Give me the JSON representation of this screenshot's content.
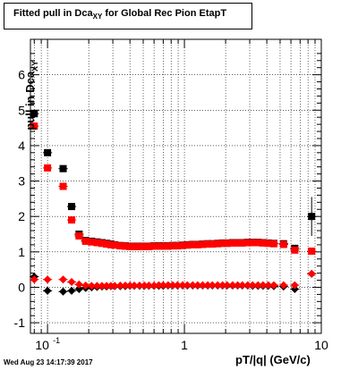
{
  "title_prefix": "Fitted pull in Dca",
  "title_sub": "XY",
  "title_suffix": " for Global Rec Pion EtapT",
  "ylabel_main": "pull in Dca",
  "ylabel_sub": "XY",
  "xlabel": "pT/|q| (GeV/c)",
  "datestamp": "Wed Aug 23 14:17:39 2017",
  "colors": {
    "black_series": "#000000",
    "red_series": "#ff0000",
    "grid": "#000000"
  },
  "chart_data": {
    "type": "scatter",
    "title": "Fitted pull in DcaXY for Global Rec Pion EtapT",
    "xlabel": "pT/|q| (GeV/c)",
    "ylabel": "pull in DcaXY",
    "xscale": "log",
    "xlim": [
      0.075,
      10
    ],
    "ylim": [
      -1.3,
      7
    ],
    "grid": true,
    "x_tick_labels": [
      {
        "value": 0.1,
        "label": "10",
        "exp": "-1"
      },
      {
        "value": 1,
        "label": "1",
        "exp": ""
      },
      {
        "value": 10,
        "label": "10",
        "exp": ""
      }
    ],
    "y_tick_labels": [
      -1,
      0,
      1,
      2,
      3,
      4,
      5,
      6
    ],
    "series": [
      {
        "color": "black",
        "marker": "square",
        "points": [
          [
            0.08,
            4.9
          ],
          [
            0.1,
            3.8
          ],
          [
            0.13,
            3.35
          ],
          [
            0.15,
            2.28
          ],
          [
            0.17,
            1.5
          ],
          [
            0.19,
            1.32
          ],
          [
            0.21,
            1.3
          ],
          [
            0.23,
            1.28
          ],
          [
            0.25,
            1.26
          ],
          [
            0.27,
            1.24
          ],
          [
            0.29,
            1.22
          ],
          [
            0.31,
            1.2
          ],
          [
            0.34,
            1.18
          ],
          [
            0.37,
            1.17
          ],
          [
            0.4,
            1.16
          ],
          [
            0.43,
            1.16
          ],
          [
            0.47,
            1.16
          ],
          [
            0.51,
            1.16
          ],
          [
            0.55,
            1.16
          ],
          [
            0.6,
            1.17
          ],
          [
            0.65,
            1.17
          ],
          [
            0.7,
            1.17
          ],
          [
            0.76,
            1.17
          ],
          [
            0.82,
            1.18
          ],
          [
            0.89,
            1.18
          ],
          [
            0.97,
            1.19
          ],
          [
            1.05,
            1.2
          ],
          [
            1.15,
            1.21
          ],
          [
            1.25,
            1.21
          ],
          [
            1.36,
            1.22
          ],
          [
            1.48,
            1.23
          ],
          [
            1.6,
            1.23
          ],
          [
            1.75,
            1.24
          ],
          [
            1.9,
            1.25
          ],
          [
            2.05,
            1.25
          ],
          [
            2.25,
            1.26
          ],
          [
            2.45,
            1.26
          ],
          [
            2.65,
            1.26
          ],
          [
            2.9,
            1.27
          ],
          [
            3.15,
            1.27
          ],
          [
            3.45,
            1.27
          ],
          [
            3.75,
            1.26
          ],
          [
            4.1,
            1.25
          ],
          [
            4.5,
            1.24
          ],
          [
            5.3,
            1.23
          ],
          [
            6.4,
            1.1
          ],
          [
            8.5,
            2.0
          ]
        ]
      },
      {
        "color": "red",
        "marker": "square",
        "points": [
          [
            0.08,
            4.55
          ],
          [
            0.1,
            3.37
          ],
          [
            0.13,
            2.85
          ],
          [
            0.15,
            1.9
          ],
          [
            0.17,
            1.45
          ],
          [
            0.19,
            1.3
          ],
          [
            0.21,
            1.28
          ],
          [
            0.23,
            1.26
          ],
          [
            0.25,
            1.24
          ],
          [
            0.27,
            1.22
          ],
          [
            0.29,
            1.2
          ],
          [
            0.31,
            1.19
          ],
          [
            0.34,
            1.17
          ],
          [
            0.37,
            1.16
          ],
          [
            0.4,
            1.15
          ],
          [
            0.43,
            1.15
          ],
          [
            0.47,
            1.15
          ],
          [
            0.51,
            1.15
          ],
          [
            0.55,
            1.15
          ],
          [
            0.6,
            1.16
          ],
          [
            0.65,
            1.16
          ],
          [
            0.7,
            1.16
          ],
          [
            0.76,
            1.16
          ],
          [
            0.82,
            1.17
          ],
          [
            0.89,
            1.17
          ],
          [
            0.97,
            1.18
          ],
          [
            1.05,
            1.19
          ],
          [
            1.15,
            1.2
          ],
          [
            1.25,
            1.2
          ],
          [
            1.36,
            1.21
          ],
          [
            1.48,
            1.22
          ],
          [
            1.6,
            1.22
          ],
          [
            1.75,
            1.23
          ],
          [
            1.9,
            1.24
          ],
          [
            2.05,
            1.24
          ],
          [
            2.25,
            1.25
          ],
          [
            2.45,
            1.25
          ],
          [
            2.65,
            1.25
          ],
          [
            2.9,
            1.26
          ],
          [
            3.15,
            1.26
          ],
          [
            3.45,
            1.26
          ],
          [
            3.75,
            1.25
          ],
          [
            4.1,
            1.24
          ],
          [
            4.5,
            1.23
          ],
          [
            5.3,
            1.21
          ],
          [
            6.4,
            1.05
          ],
          [
            8.5,
            1.02
          ]
        ]
      },
      {
        "color": "black",
        "marker": "diamond",
        "points": [
          [
            0.08,
            0.3
          ],
          [
            0.1,
            -0.1
          ],
          [
            0.13,
            -0.12
          ],
          [
            0.15,
            -0.1
          ],
          [
            0.17,
            -0.05
          ],
          [
            0.19,
            -0.02
          ],
          [
            0.21,
            0.0
          ],
          [
            0.23,
            0.01
          ],
          [
            0.25,
            0.02
          ],
          [
            0.27,
            0.02
          ],
          [
            0.29,
            0.03
          ],
          [
            0.31,
            0.03
          ],
          [
            0.34,
            0.03
          ],
          [
            0.37,
            0.03
          ],
          [
            0.4,
            0.04
          ],
          [
            0.43,
            0.04
          ],
          [
            0.47,
            0.04
          ],
          [
            0.51,
            0.04
          ],
          [
            0.55,
            0.04
          ],
          [
            0.6,
            0.04
          ],
          [
            0.65,
            0.04
          ],
          [
            0.7,
            0.04
          ],
          [
            0.76,
            0.05
          ],
          [
            0.82,
            0.05
          ],
          [
            0.89,
            0.05
          ],
          [
            0.97,
            0.05
          ],
          [
            1.05,
            0.05
          ],
          [
            1.15,
            0.05
          ],
          [
            1.25,
            0.05
          ],
          [
            1.36,
            0.05
          ],
          [
            1.48,
            0.05
          ],
          [
            1.6,
            0.05
          ],
          [
            1.75,
            0.05
          ],
          [
            1.9,
            0.05
          ],
          [
            2.05,
            0.05
          ],
          [
            2.25,
            0.05
          ],
          [
            2.45,
            0.05
          ],
          [
            2.65,
            0.05
          ],
          [
            2.9,
            0.05
          ],
          [
            3.15,
            0.04
          ],
          [
            3.45,
            0.04
          ],
          [
            3.75,
            0.04
          ],
          [
            4.1,
            0.04
          ],
          [
            4.5,
            0.03
          ],
          [
            5.3,
            0.02
          ],
          [
            6.4,
            -0.05
          ],
          [
            8.5,
            0.38
          ]
        ]
      },
      {
        "color": "red",
        "marker": "diamond",
        "points": [
          [
            0.08,
            0.22
          ],
          [
            0.1,
            0.22
          ],
          [
            0.13,
            0.22
          ],
          [
            0.15,
            0.15
          ],
          [
            0.17,
            0.08
          ],
          [
            0.19,
            0.05
          ],
          [
            0.21,
            0.04
          ],
          [
            0.23,
            0.04
          ],
          [
            0.25,
            0.04
          ],
          [
            0.27,
            0.04
          ],
          [
            0.29,
            0.04
          ],
          [
            0.31,
            0.04
          ],
          [
            0.34,
            0.05
          ],
          [
            0.37,
            0.05
          ],
          [
            0.4,
            0.05
          ],
          [
            0.43,
            0.05
          ],
          [
            0.47,
            0.05
          ],
          [
            0.51,
            0.05
          ],
          [
            0.55,
            0.05
          ],
          [
            0.6,
            0.05
          ],
          [
            0.65,
            0.06
          ],
          [
            0.7,
            0.06
          ],
          [
            0.76,
            0.06
          ],
          [
            0.82,
            0.06
          ],
          [
            0.89,
            0.06
          ],
          [
            0.97,
            0.06
          ],
          [
            1.05,
            0.06
          ],
          [
            1.15,
            0.06
          ],
          [
            1.25,
            0.06
          ],
          [
            1.36,
            0.06
          ],
          [
            1.48,
            0.06
          ],
          [
            1.6,
            0.06
          ],
          [
            1.75,
            0.06
          ],
          [
            1.9,
            0.06
          ],
          [
            2.05,
            0.06
          ],
          [
            2.25,
            0.06
          ],
          [
            2.45,
            0.06
          ],
          [
            2.65,
            0.06
          ],
          [
            2.9,
            0.06
          ],
          [
            3.15,
            0.06
          ],
          [
            3.45,
            0.06
          ],
          [
            3.75,
            0.06
          ],
          [
            4.1,
            0.06
          ],
          [
            4.5,
            0.06
          ],
          [
            5.3,
            0.06
          ],
          [
            6.4,
            0.06
          ],
          [
            8.5,
            0.38
          ]
        ]
      }
    ]
  }
}
